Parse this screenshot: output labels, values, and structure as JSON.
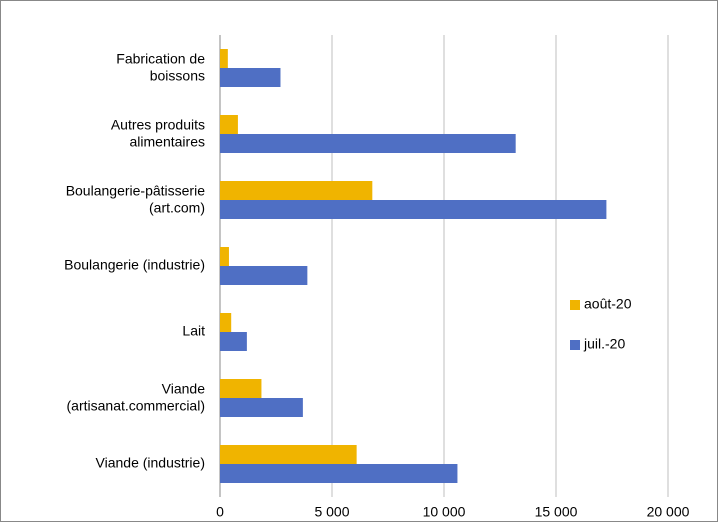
{
  "chart_data": {
    "type": "hbar",
    "categories": [
      "Fabrication de\nboissons",
      "Autres produits\nalimentaires",
      "Boulangerie-pâtisserie\n(art.com)",
      "Boulangerie (industrie)",
      "Lait",
      "Viande\n(artisanat.commercial)",
      "Viande (industrie)"
    ],
    "series": [
      {
        "name": "août-20",
        "color": "#f0b400",
        "values": [
          350,
          800,
          6800,
          400,
          500,
          1850,
          6100
        ]
      },
      {
        "name": "juil.-20",
        "color": "#4f6fc4",
        "values": [
          2700,
          13200,
          17250,
          3900,
          1200,
          3700,
          10600
        ]
      }
    ],
    "xlim": [
      0,
      20000
    ],
    "xticks": [
      0,
      {
        "value": 5000,
        "label": "5 000"
      },
      {
        "value": 10000,
        "label": "10 000"
      },
      {
        "value": 15000,
        "label": "15 000"
      },
      {
        "value": 20000,
        "label": "20 000"
      }
    ],
    "grid": true,
    "legend": "right"
  }
}
